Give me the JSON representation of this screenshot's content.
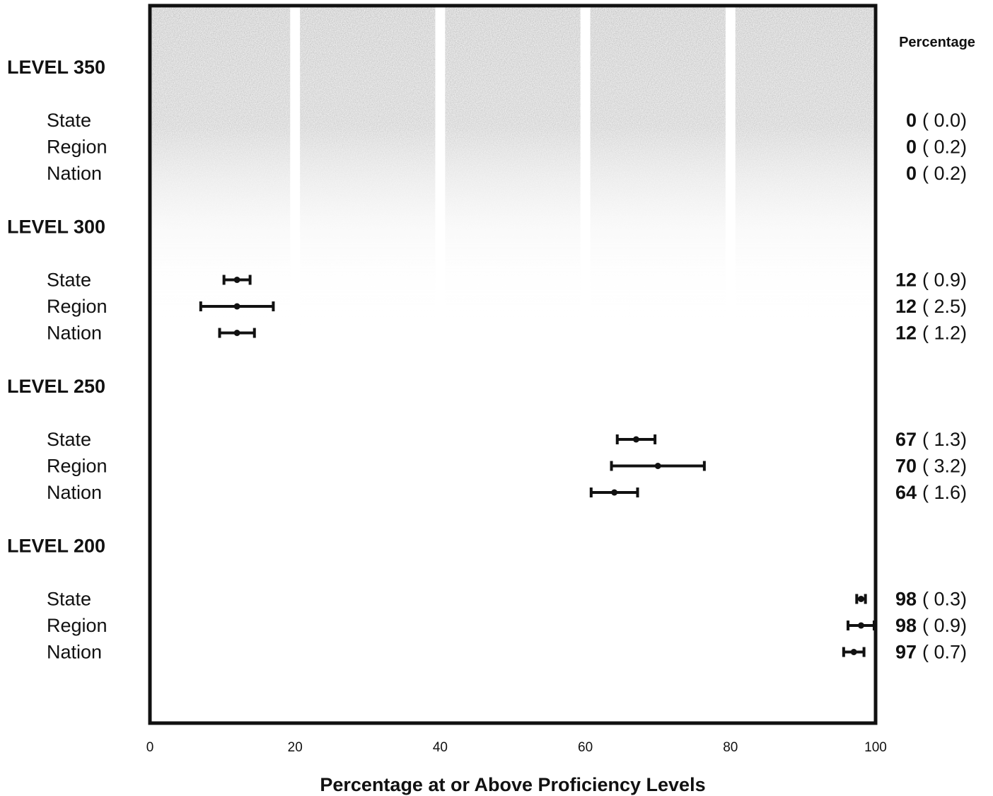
{
  "chart_data": {
    "type": "scatter",
    "xlabel": "Percentage at or Above Proficiency Levels",
    "xlim": [
      0,
      100
    ],
    "x_ticks": [
      "0",
      "20",
      "40",
      "60",
      "80",
      "100"
    ],
    "grid": "vertical bands",
    "right_column_header": "Percentage",
    "levels": [
      {
        "label": "LEVEL 350",
        "rows": [
          {
            "name": "State",
            "value": 0,
            "se": 0.0,
            "value_text": "0",
            "se_text": "( 0.0)"
          },
          {
            "name": "Region",
            "value": 0,
            "se": 0.2,
            "value_text": "0",
            "se_text": "( 0.2)"
          },
          {
            "name": "Nation",
            "value": 0,
            "se": 0.2,
            "value_text": "0",
            "se_text": "( 0.2)"
          }
        ]
      },
      {
        "label": "LEVEL 300",
        "rows": [
          {
            "name": "State",
            "value": 12,
            "se": 0.9,
            "value_text": "12",
            "se_text": "( 0.9)"
          },
          {
            "name": "Region",
            "value": 12,
            "se": 2.5,
            "value_text": "12",
            "se_text": "( 2.5)"
          },
          {
            "name": "Nation",
            "value": 12,
            "se": 1.2,
            "value_text": "12",
            "se_text": "( 1.2)"
          }
        ]
      },
      {
        "label": "LEVEL 250",
        "rows": [
          {
            "name": "State",
            "value": 67,
            "se": 1.3,
            "value_text": "67",
            "se_text": "( 1.3)"
          },
          {
            "name": "Region",
            "value": 70,
            "se": 3.2,
            "value_text": "70",
            "se_text": "( 3.2)"
          },
          {
            "name": "Nation",
            "value": 64,
            "se": 1.6,
            "value_text": "64",
            "se_text": "( 1.6)"
          }
        ]
      },
      {
        "label": "LEVEL 200",
        "rows": [
          {
            "name": "State",
            "value": 98,
            "se": 0.3,
            "value_text": "98",
            "se_text": "( 0.3)"
          },
          {
            "name": "Region",
            "value": 98,
            "se": 0.9,
            "value_text": "98",
            "se_text": "( 0.9)"
          },
          {
            "name": "Nation",
            "value": 97,
            "se": 0.7,
            "value_text": "97",
            "se_text": "( 0.7)"
          }
        ]
      }
    ]
  },
  "colors": {
    "ink": "#111111",
    "band_fill": "#c4c4c4",
    "band_gap": "#ffffff"
  }
}
